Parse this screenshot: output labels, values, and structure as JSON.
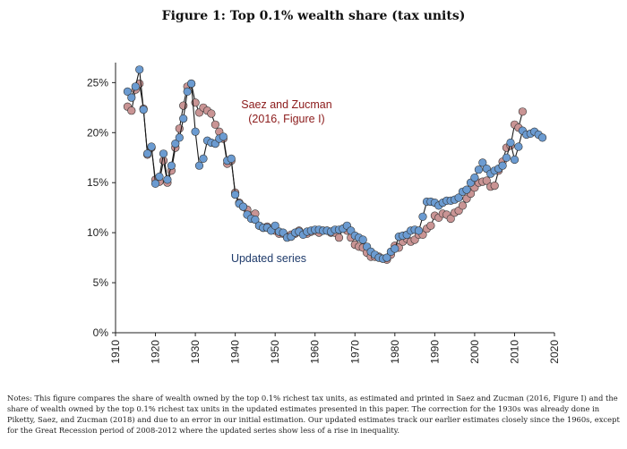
{
  "figure_title": "Figure 1: Top 0.1% wealth share (tax units)",
  "notes": "Notes: This figure compares the share of wealth owned by the top 0.1% richest tax units, as estimated and printed in Saez and Zucman (2016, Figure I) and the share of wealth owned by the top 0.1% richest tax units in the updated estimates presented in this paper. The correction for the 1930s was already done in Piketty, Saez, and Zucman (2018) and due to an error in our initial estimation. Our updated estimates track our earlier estimates closely since the 1960s, except for the Great Recession period of 2008-2012 where the updated series show less of a rise in inequality.",
  "colors": {
    "saez_zucman": "#c99494",
    "updated": "#6b9bd1",
    "saez_label": "#8b1a1a",
    "updated_label": "#1f3b6b"
  },
  "chart_data": {
    "type": "line",
    "title": "Figure 1: Top 0.1% wealth share (tax units)",
    "xlabel": "",
    "ylabel": "",
    "xlim": [
      1910,
      2020
    ],
    "ylim": [
      0,
      27
    ],
    "x_ticks": [
      1910,
      1920,
      1930,
      1940,
      1950,
      1960,
      1970,
      1980,
      1990,
      2000,
      2010,
      2020
    ],
    "y_ticks": [
      0,
      5,
      10,
      15,
      20,
      25
    ],
    "y_tick_labels": [
      "0%",
      "5%",
      "10%",
      "15%",
      "20%",
      "25%"
    ],
    "grid": false,
    "series": [
      {
        "name": "Saez and Zucman (2016, Figure I)",
        "annotation_line1": "Saez and Zucman",
        "annotation_line2": "(2016, Figure I)",
        "marker": "circle",
        "x": [
          1913,
          1914,
          1915,
          1916,
          1917,
          1918,
          1919,
          1920,
          1921,
          1922,
          1923,
          1924,
          1925,
          1926,
          1927,
          1928,
          1929,
          1930,
          1931,
          1932,
          1933,
          1934,
          1935,
          1936,
          1937,
          1938,
          1939,
          1940,
          1941,
          1942,
          1943,
          1944,
          1945,
          1946,
          1947,
          1948,
          1949,
          1950,
          1951,
          1952,
          1953,
          1954,
          1955,
          1956,
          1957,
          1958,
          1959,
          1960,
          1961,
          1962,
          1963,
          1964,
          1965,
          1966,
          1967,
          1968,
          1969,
          1970,
          1971,
          1972,
          1973,
          1974,
          1975,
          1976,
          1977,
          1978,
          1979,
          1980,
          1981,
          1982,
          1983,
          1984,
          1985,
          1986,
          1987,
          1988,
          1989,
          1990,
          1991,
          1992,
          1993,
          1994,
          1995,
          1996,
          1997,
          1998,
          1999,
          2000,
          2001,
          2002,
          2003,
          2004,
          2005,
          2006,
          2007,
          2008,
          2009,
          2010,
          2011,
          2012
        ],
        "y": [
          22.6,
          22.2,
          24.3,
          24.9,
          22.4,
          17.8,
          18.5,
          15.3,
          15.1,
          17.2,
          15.0,
          16.2,
          18.5,
          20.4,
          22.7,
          24.6,
          24.9,
          23.0,
          22.0,
          22.5,
          22.2,
          21.9,
          20.8,
          20.1,
          19.4,
          16.9,
          17.2,
          14.0,
          13.0,
          12.6,
          12.3,
          11.7,
          11.9,
          10.7,
          10.5,
          10.6,
          10.4,
          10.2,
          9.9,
          9.9,
          9.6,
          9.8,
          9.9,
          10.2,
          9.9,
          9.9,
          10.1,
          10.2,
          10.0,
          10.2,
          10.2,
          10.0,
          10.0,
          9.5,
          10.4,
          10.2,
          9.5,
          8.8,
          8.6,
          8.5,
          8.0,
          7.6,
          7.6,
          7.6,
          7.4,
          7.3,
          7.8,
          8.7,
          8.5,
          9.1,
          9.4,
          9.1,
          9.3,
          9.8,
          9.8,
          10.4,
          10.7,
          11.7,
          11.5,
          11.9,
          11.8,
          11.4,
          12.0,
          12.2,
          12.7,
          13.4,
          13.9,
          14.5,
          15.0,
          15.1,
          15.2,
          14.6,
          14.7,
          16.2,
          17.1,
          18.5,
          18.7,
          20.8,
          20.5,
          22.1
        ]
      },
      {
        "name": "Updated series",
        "annotation_line1": "Updated series",
        "marker": "circle",
        "x": [
          1913,
          1914,
          1915,
          1916,
          1917,
          1918,
          1919,
          1920,
          1921,
          1922,
          1923,
          1924,
          1925,
          1926,
          1927,
          1928,
          1929,
          1930,
          1931,
          1932,
          1933,
          1934,
          1935,
          1936,
          1937,
          1938,
          1939,
          1940,
          1941,
          1942,
          1943,
          1944,
          1945,
          1946,
          1947,
          1948,
          1949,
          1950,
          1951,
          1952,
          1953,
          1954,
          1955,
          1956,
          1957,
          1958,
          1959,
          1960,
          1961,
          1962,
          1963,
          1964,
          1965,
          1966,
          1967,
          1968,
          1969,
          1970,
          1971,
          1972,
          1973,
          1974,
          1975,
          1976,
          1977,
          1978,
          1979,
          1980,
          1981,
          1982,
          1983,
          1984,
          1985,
          1986,
          1987,
          1988,
          1989,
          1990,
          1991,
          1992,
          1993,
          1994,
          1995,
          1996,
          1997,
          1998,
          1999,
          2000,
          2001,
          2002,
          2003,
          2004,
          2005,
          2006,
          2007,
          2008,
          2009,
          2010,
          2011,
          2012,
          2013,
          2014,
          2015,
          2016,
          2017
        ],
        "y": [
          24.1,
          23.5,
          24.6,
          26.3,
          22.3,
          17.9,
          18.6,
          14.9,
          15.6,
          17.9,
          15.3,
          16.7,
          18.9,
          19.5,
          21.4,
          24.1,
          24.9,
          20.1,
          16.7,
          17.4,
          19.2,
          19.0,
          18.9,
          19.4,
          19.6,
          17.2,
          17.4,
          13.8,
          12.9,
          12.6,
          11.8,
          11.4,
          11.3,
          10.7,
          10.5,
          10.5,
          10.2,
          10.7,
          10.1,
          10.0,
          9.5,
          9.6,
          10.0,
          10.1,
          9.8,
          10.1,
          10.2,
          10.3,
          10.3,
          10.2,
          10.2,
          10.1,
          10.3,
          10.3,
          10.4,
          10.7,
          10.2,
          9.7,
          9.5,
          9.3,
          8.6,
          8.1,
          7.8,
          7.5,
          7.4,
          7.5,
          8.1,
          8.4,
          9.6,
          9.7,
          9.8,
          10.2,
          10.3,
          10.2,
          11.6,
          13.1,
          13.1,
          13.0,
          12.7,
          13.0,
          13.2,
          13.2,
          13.3,
          13.5,
          14.1,
          14.3,
          15.0,
          15.5,
          16.3,
          17.0,
          16.4,
          15.9,
          16.2,
          16.4,
          16.7,
          17.5,
          19.0,
          17.3,
          18.6,
          20.2,
          19.8,
          19.9,
          20.1,
          19.8,
          19.5
        ]
      }
    ]
  }
}
